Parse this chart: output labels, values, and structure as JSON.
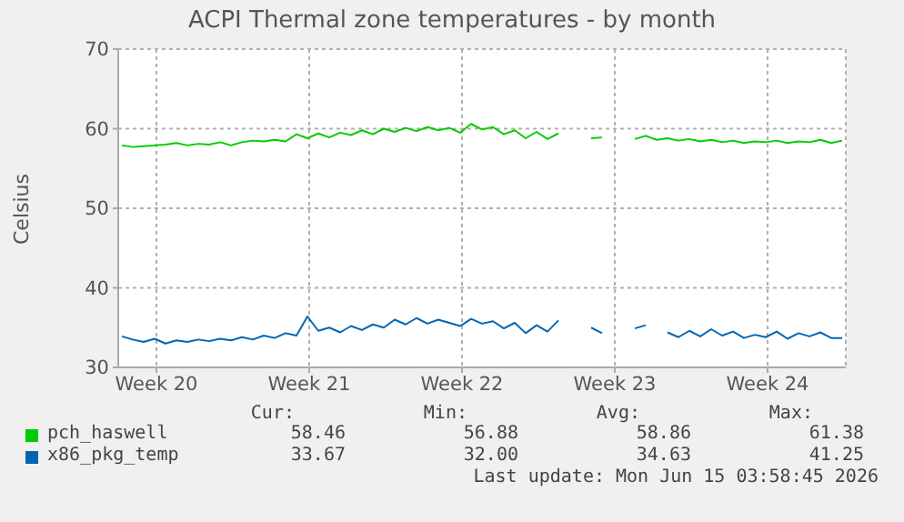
{
  "chart_data": {
    "type": "line",
    "title": "ACPI Thermal zone temperatures - by month",
    "ylabel": "Celsius",
    "x": [
      "2026-05-13T00:00",
      "2026-05-13T12:00",
      "2026-05-14T00:00",
      "2026-05-14T12:00",
      "2026-05-15T00:00",
      "2026-05-15T12:00",
      "2026-05-16T00:00",
      "2026-05-16T12:00",
      "2026-05-17T00:00",
      "2026-05-17T12:00",
      "2026-05-18T00:00",
      "2026-05-18T12:00",
      "2026-05-19T00:00",
      "2026-05-19T12:00",
      "2026-05-20T00:00",
      "2026-05-20T12:00",
      "2026-05-21T00:00",
      "2026-05-21T12:00",
      "2026-05-22T00:00",
      "2026-05-22T12:00",
      "2026-05-23T00:00",
      "2026-05-23T12:00",
      "2026-05-24T00:00",
      "2026-05-24T12:00",
      "2026-05-25T00:00",
      "2026-05-25T12:00",
      "2026-05-26T00:00",
      "2026-05-26T12:00",
      "2026-05-27T00:00",
      "2026-05-27T12:00",
      "2026-05-28T00:00",
      "2026-05-28T12:00",
      "2026-05-29T00:00",
      "2026-05-29T12:00",
      "2026-05-30T00:00",
      "2026-05-30T12:00",
      "2026-05-31T00:00",
      "2026-05-31T12:00",
      "2026-06-01T00:00",
      "2026-06-01T12:00",
      "2026-06-02T00:00",
      "2026-06-02T12:00",
      "2026-06-03T00:00",
      "2026-06-03T12:00",
      "2026-06-04T00:00",
      "2026-06-04T12:00",
      "2026-06-05T00:00",
      "2026-06-05T12:00",
      "2026-06-06T00:00",
      "2026-06-06T12:00",
      "2026-06-07T00:00",
      "2026-06-07T12:00",
      "2026-06-08T00:00",
      "2026-06-08T12:00",
      "2026-06-09T00:00",
      "2026-06-09T12:00",
      "2026-06-10T00:00",
      "2026-06-10T12:00",
      "2026-06-11T00:00",
      "2026-06-11T12:00",
      "2026-06-12T00:00",
      "2026-06-12T12:00",
      "2026-06-13T00:00",
      "2026-06-13T12:00",
      "2026-06-14T00:00",
      "2026-06-14T12:00",
      "2026-06-15T00:00"
    ],
    "series": [
      {
        "name": "pch_haswell",
        "color": "#00cc00",
        "values": [
          57.9,
          57.7,
          57.8,
          57.9,
          58.0,
          58.2,
          57.9,
          58.1,
          58.0,
          58.3,
          57.9,
          58.3,
          58.5,
          58.4,
          58.6,
          58.4,
          59.3,
          58.8,
          59.4,
          58.9,
          59.5,
          59.2,
          59.8,
          59.3,
          60.0,
          59.6,
          60.1,
          59.7,
          60.2,
          59.8,
          60.1,
          59.5,
          60.6,
          59.9,
          60.2,
          59.3,
          59.8,
          58.8,
          59.6,
          58.7,
          59.4,
          null,
          null,
          58.8,
          58.9,
          null,
          null,
          58.7,
          59.1,
          58.6,
          58.8,
          58.5,
          58.7,
          58.4,
          58.6,
          58.3,
          58.5,
          58.2,
          58.4,
          58.3,
          58.5,
          58.2,
          58.4,
          58.3,
          58.6,
          58.2,
          58.5
        ]
      },
      {
        "name": "x86_pkg_temp",
        "color": "#0066b3",
        "values": [
          33.9,
          33.5,
          33.2,
          33.6,
          33.0,
          33.4,
          33.2,
          33.5,
          33.3,
          33.6,
          33.4,
          33.8,
          33.5,
          34.0,
          33.7,
          34.3,
          34.0,
          36.4,
          34.6,
          35.0,
          34.4,
          35.2,
          34.7,
          35.4,
          35.0,
          36.0,
          35.4,
          36.2,
          35.5,
          36.0,
          35.6,
          35.2,
          36.1,
          35.5,
          35.8,
          34.9,
          35.6,
          34.3,
          35.3,
          34.5,
          35.9,
          null,
          null,
          35.0,
          34.3,
          null,
          null,
          34.9,
          35.3,
          null,
          34.4,
          33.8,
          34.6,
          33.9,
          34.8,
          34.0,
          34.5,
          33.7,
          34.1,
          33.8,
          34.5,
          33.6,
          34.3,
          33.9,
          34.4,
          33.7,
          33.7
        ]
      }
    ],
    "xlim": [
      "2026-05-12T20:00",
      "2026-06-15T04:00"
    ],
    "xticks": [
      {
        "value": "2026-05-14T14:00",
        "label": "Week 20"
      },
      {
        "value": "2026-05-21T14:00",
        "label": "Week 21"
      },
      {
        "value": "2026-05-28T14:00",
        "label": "Week 22"
      },
      {
        "value": "2026-06-04T14:00",
        "label": "Week 23"
      },
      {
        "value": "2026-06-11T14:00",
        "label": "Week 24"
      }
    ],
    "ylim": [
      30,
      70
    ],
    "yticks": [
      30,
      40,
      50,
      60,
      70
    ],
    "grid": true,
    "legend": "bottom",
    "marker": "none",
    "line_style": "solid",
    "annotations": [
      "Cur:",
      "Min:",
      "Avg:",
      "Max:",
      "58.46",
      "56.88",
      "58.86",
      "61.38",
      "33.67",
      "32.00",
      "34.63",
      "41.25",
      "Last update: Mon Jun 15 03:58:45 2026"
    ]
  }
}
